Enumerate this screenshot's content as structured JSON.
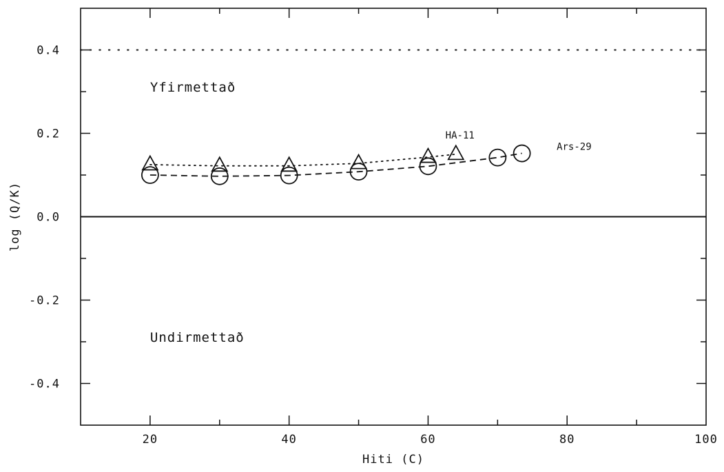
{
  "chart_data": {
    "type": "line",
    "xlabel": "Hiti  (C)",
    "ylabel": "log (Q/K)",
    "xlim": [
      10,
      100
    ],
    "ylim": [
      -0.5,
      0.5
    ],
    "xticks": [
      20,
      40,
      60,
      80,
      100
    ],
    "xtick_labels": [
      "20",
      "40",
      "60",
      "80",
      "100"
    ],
    "yticks": [
      0.4,
      0.2,
      0.0,
      -0.2,
      -0.4
    ],
    "ytick_labels": [
      "0.4",
      "0.2",
      "0.0",
      "-0.2",
      "-0.4"
    ],
    "grid": false,
    "reference_lines": [
      {
        "y": 0.4,
        "style": "dotted"
      },
      {
        "y": 0.0,
        "style": "solid"
      }
    ],
    "series": [
      {
        "name": "HA-11",
        "marker": "triangle",
        "line_style": "dotted",
        "x": [
          20,
          30,
          40,
          50,
          60,
          64
        ],
        "y": [
          0.125,
          0.122,
          0.122,
          0.128,
          0.143,
          0.15
        ]
      },
      {
        "name": "Ars-29",
        "marker": "circle",
        "line_style": "dashed",
        "x": [
          20,
          30,
          40,
          50,
          60,
          70,
          73.5
        ],
        "y": [
          0.1,
          0.097,
          0.099,
          0.108,
          0.121,
          0.142,
          0.152
        ]
      }
    ],
    "annotations": [
      {
        "text": "Yfirmettað",
        "x": 20,
        "y": 0.3
      },
      {
        "text": "Undirmettað",
        "x": 20,
        "y": -0.3
      },
      {
        "text": "HA-11",
        "x": 62.5,
        "y": 0.188
      },
      {
        "text": "Ars-29",
        "x": 78.5,
        "y": 0.16
      }
    ]
  }
}
